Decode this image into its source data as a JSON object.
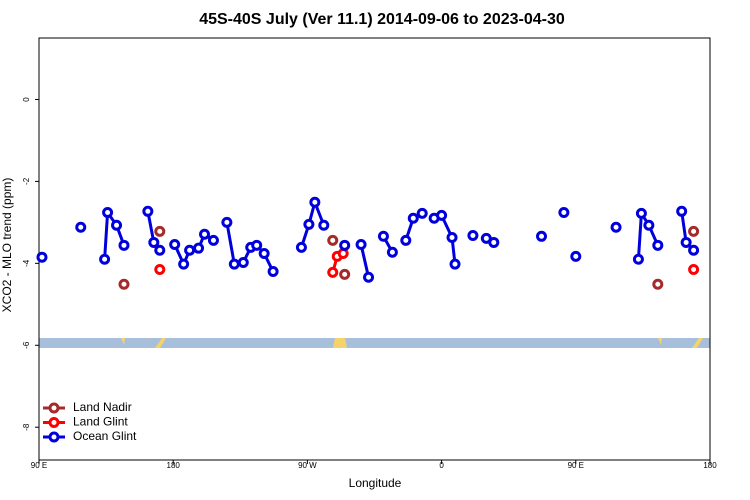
{
  "chart_data": {
    "type": "line",
    "title": "45S-40S July (Ver 11.1)   2014-09-06 to 2023-04-30",
    "x_label": "Longitude",
    "y_label": "XCO2 - MLO trend (ppm)",
    "xlim": [
      90,
      540
    ],
    "xticks": [
      {
        "value": 90,
        "label": "90 E"
      },
      {
        "value": 180,
        "label": "180"
      },
      {
        "value": 270,
        "label": "90 W"
      },
      {
        "value": 360,
        "label": "0"
      },
      {
        "value": 450,
        "label": "90 E"
      },
      {
        "value": 540,
        "label": "180"
      }
    ],
    "ylim": [
      -8.8,
      1.5
    ],
    "yticks": [
      0,
      -2,
      -4,
      -6,
      -8
    ],
    "legend": "bottom-left",
    "series": [
      {
        "name": "Land Nadir",
        "color": "#a52a2a",
        "x": [
          147,
          null,
          171,
          null,
          287,
          null,
          295,
          null,
          505,
          null,
          529
        ],
        "values": [
          -4.51,
          null,
          -3.22,
          null,
          -3.44,
          null,
          -4.27,
          null,
          -4.51,
          null,
          -3.22
        ]
      },
      {
        "name": "Land Glint",
        "color": "#ff0000",
        "x": [
          171,
          null,
          287,
          290,
          294,
          null,
          529
        ],
        "values": [
          -4.15,
          null,
          -4.22,
          -3.83,
          -3.76,
          null,
          -4.15
        ]
      },
      {
        "name": "Ocean Glint",
        "color": "#0000dd",
        "x": [
          92,
          null,
          118,
          null,
          134,
          136,
          142,
          147,
          null,
          163,
          167,
          171,
          null,
          181,
          187,
          191,
          197,
          201,
          207,
          null,
          216,
          221,
          227,
          232,
          236,
          241,
          247,
          null,
          266,
          271,
          275,
          281,
          null,
          295,
          null,
          306,
          311,
          null,
          321,
          327,
          null,
          336,
          341,
          347,
          null,
          355,
          360,
          367,
          369,
          null,
          381,
          null,
          390,
          395,
          null,
          427,
          null,
          442,
          null,
          450,
          null,
          477,
          null,
          492,
          494,
          499,
          505,
          null,
          521,
          524,
          529
        ],
        "values": [
          -3.85,
          null,
          -3.12,
          null,
          -3.9,
          -2.76,
          -3.07,
          -3.56,
          null,
          -2.73,
          -3.49,
          -3.68,
          null,
          -3.54,
          -4.02,
          -3.68,
          -3.63,
          -3.29,
          -3.44,
          null,
          -3.0,
          -4.02,
          -3.98,
          -3.61,
          -3.56,
          -3.76,
          -4.2,
          null,
          -3.61,
          -3.05,
          -2.51,
          -3.07,
          null,
          -3.56,
          null,
          -3.54,
          -4.34,
          null,
          -3.34,
          -3.73,
          null,
          -3.44,
          -2.9,
          -2.78,
          null,
          -2.9,
          -2.83,
          -3.37,
          -4.02,
          null,
          -3.32,
          null,
          -3.39,
          -3.49,
          null,
          -3.34,
          null,
          -2.76,
          null,
          -3.83,
          null,
          -3.12,
          null,
          -3.9,
          -2.78,
          -3.07,
          -3.56,
          null,
          -2.73,
          -3.49,
          -3.68
        ]
      }
    ]
  }
}
